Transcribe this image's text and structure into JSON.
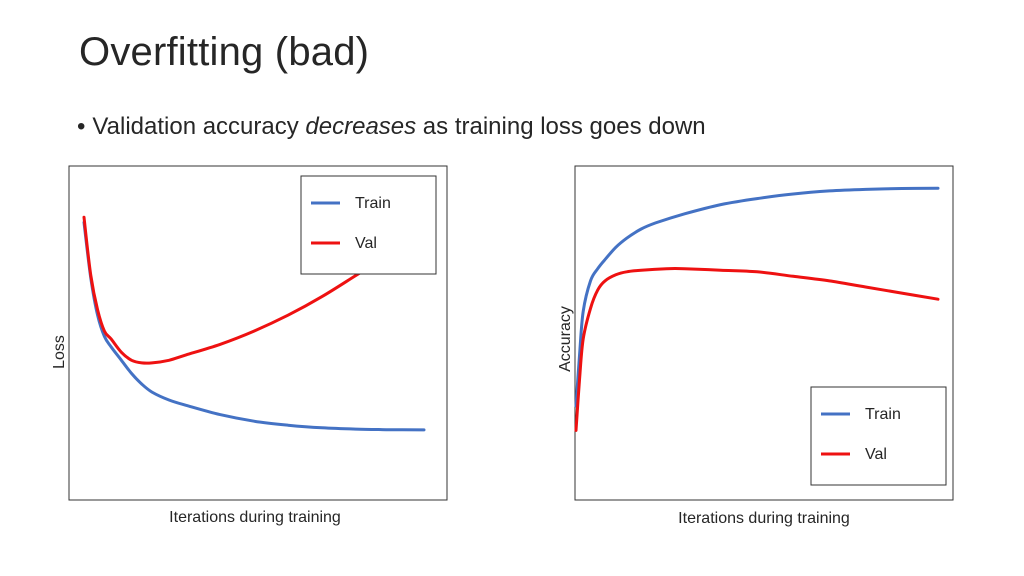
{
  "slide": {
    "title": "Overfitting (bad)",
    "bullet": {
      "symbol": "•",
      "before": "Validation accuracy ",
      "emphasis": "decreases",
      "after": " as training loss goes down"
    }
  },
  "colors": {
    "train": "#4472C4",
    "val": "#EE1111",
    "frame": "#333333"
  },
  "chart_data": [
    {
      "type": "line",
      "title": "",
      "xlabel": "Iterations during training",
      "ylabel": "Loss",
      "xlim": [
        0,
        100
      ],
      "ylim": [
        0,
        100
      ],
      "grid": false,
      "ticks_shown": false,
      "legend": {
        "placement": "top-right",
        "entries": [
          "Train",
          "Val"
        ]
      },
      "series": [
        {
          "name": "Train",
          "color_key": "train",
          "x": [
            0,
            2,
            4,
            6,
            8,
            11,
            14,
            17,
            20,
            25,
            30,
            40,
            50,
            60,
            70,
            80,
            90,
            100
          ],
          "y": [
            87,
            66,
            52,
            44,
            40,
            35,
            30,
            26,
            23,
            20,
            18,
            14.5,
            12,
            10.5,
            9.5,
            9,
            8.8,
            8.7
          ]
        },
        {
          "name": "Val",
          "color_key": "val",
          "x": [
            0,
            2,
            4,
            6,
            8,
            11,
            14,
            17,
            20,
            25,
            30,
            40,
            50,
            60,
            70,
            80,
            90,
            96
          ],
          "y": [
            89,
            67,
            54,
            46,
            43,
            38,
            35,
            34,
            34,
            35,
            37,
            41,
            46,
            52,
            59,
            67,
            75,
            80
          ]
        }
      ]
    },
    {
      "type": "line",
      "title": "",
      "xlabel": "Iterations during training",
      "ylabel": "Accuracy",
      "xlim": [
        0,
        100
      ],
      "ylim": [
        0,
        100
      ],
      "grid": false,
      "ticks_shown": false,
      "legend": {
        "placement": "bottom-right",
        "entries": [
          "Train",
          "Val"
        ]
      },
      "series": [
        {
          "name": "Train",
          "color_key": "train",
          "x": [
            0,
            1,
            2,
            4,
            6,
            8,
            11,
            14,
            18,
            22,
            30,
            40,
            50,
            60,
            70,
            80,
            90,
            100
          ],
          "y": [
            21,
            38,
            52,
            62,
            66,
            69,
            73,
            76,
            79,
            81,
            84,
            87,
            89,
            90.5,
            91.5,
            92,
            92.3,
            92.4
          ]
        },
        {
          "name": "Val",
          "color_key": "val",
          "x": [
            0,
            1,
            2,
            4,
            6,
            8,
            11,
            14,
            18,
            25,
            30,
            40,
            50,
            60,
            70,
            80,
            90,
            100
          ],
          "y": [
            13,
            30,
            43,
            53,
            59,
            62,
            64,
            65,
            65.5,
            66,
            66,
            65.5,
            65,
            63.5,
            62,
            60,
            58,
            56
          ]
        }
      ]
    }
  ]
}
